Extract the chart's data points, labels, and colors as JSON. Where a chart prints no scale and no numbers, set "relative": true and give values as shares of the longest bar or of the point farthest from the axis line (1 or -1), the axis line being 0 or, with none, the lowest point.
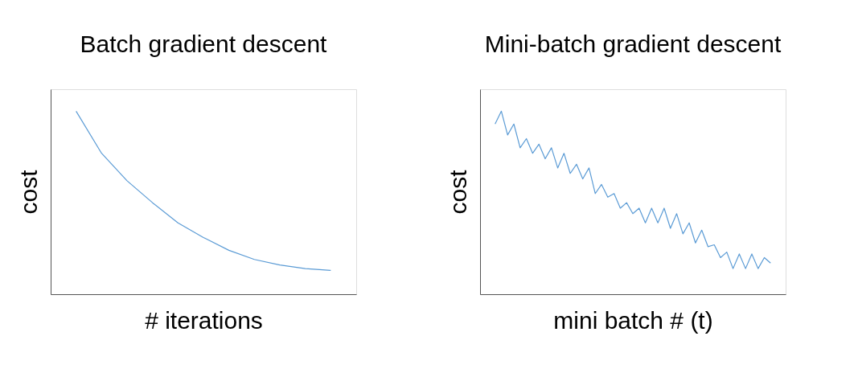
{
  "chart_data": [
    {
      "type": "line",
      "title": "Batch gradient descent",
      "xlabel": "# iterations",
      "ylabel": "cost",
      "relative": true,
      "categories": [
        null,
        null,
        null,
        null,
        null,
        null,
        null,
        null,
        null,
        null,
        null
      ],
      "series": [
        {
          "color": "#5b9bd5",
          "values": [
            1,
            0.77,
            0.62,
            0.5,
            0.39,
            0.31,
            0.24,
            0.19,
            0.16,
            0.14,
            0.13
          ]
        }
      ]
    },
    {
      "type": "line",
      "title": "Mini-batch gradient descent",
      "xlabel": "mini batch # (t)",
      "ylabel": "cost",
      "relative": true,
      "categories": [
        null,
        null,
        null,
        null,
        null,
        null,
        null,
        null,
        null,
        null,
        null,
        null,
        null,
        null,
        null,
        null,
        null,
        null,
        null,
        null,
        null,
        null,
        null,
        null,
        null,
        null,
        null,
        null,
        null,
        null,
        null,
        null,
        null,
        null,
        null,
        null,
        null,
        null,
        null,
        null,
        null,
        null,
        null,
        null,
        null
      ],
      "series": [
        {
          "color": "#5b9bd5",
          "values": [
            0.93,
            1,
            0.87,
            0.93,
            0.8,
            0.85,
            0.77,
            0.82,
            0.74,
            0.8,
            0.69,
            0.77,
            0.66,
            0.71,
            0.63,
            0.69,
            0.55,
            0.6,
            0.53,
            0.55,
            0.47,
            0.5,
            0.44,
            0.47,
            0.39,
            0.47,
            0.39,
            0.47,
            0.36,
            0.44,
            0.33,
            0.39,
            0.28,
            0.35,
            0.26,
            0.27,
            0.2,
            0.23,
            0.14,
            0.22,
            0.14,
            0.22,
            0.14,
            0.2,
            0.17
          ]
        }
      ]
    }
  ]
}
